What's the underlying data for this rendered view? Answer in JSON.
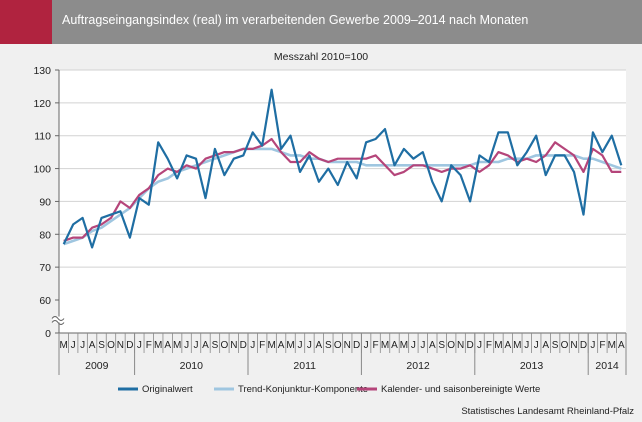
{
  "header": {
    "title": "Auftragseingangsindex (real) im verarbeitenden Gewerbe 2009–2014 nach Monaten"
  },
  "source": "Statistisches Landesamt Rheinland-Pfalz",
  "colors": {
    "header_bg": "#8c8c8c",
    "accent": "#b0233f",
    "background": "#f0f0f0"
  },
  "chart_data": {
    "type": "line",
    "subtitle": "Messzahl 2010=100",
    "yticks": [
      "0",
      "60",
      "70",
      "80",
      "90",
      "100",
      "110",
      "120",
      "130"
    ],
    "ylim": [
      60,
      130
    ],
    "axis_break": true,
    "grid": true,
    "legend_position": "bottom",
    "years": [
      {
        "label": "2009",
        "months": 8
      },
      {
        "label": "2010",
        "months": 12
      },
      {
        "label": "2011",
        "months": 12
      },
      {
        "label": "2012",
        "months": 12
      },
      {
        "label": "2013",
        "months": 12
      },
      {
        "label": "2014",
        "months": 4
      }
    ],
    "month_labels": [
      "M",
      "J",
      "J",
      "A",
      "S",
      "O",
      "N",
      "D",
      "J",
      "F",
      "M",
      "A",
      "M",
      "J",
      "J",
      "A",
      "S",
      "O",
      "N",
      "D",
      "J",
      "F",
      "M",
      "A",
      "M",
      "J",
      "J",
      "A",
      "S",
      "O",
      "N",
      "D",
      "J",
      "F",
      "M",
      "A",
      "M",
      "J",
      "J",
      "A",
      "S",
      "O",
      "N",
      "D",
      "J",
      "F",
      "M",
      "A",
      "M",
      "J",
      "J",
      "A",
      "S",
      "O",
      "N",
      "D",
      "J",
      "F",
      "M",
      "A"
    ],
    "series": [
      {
        "name": "Originalwert",
        "color": "#1f6ea3",
        "values": [
          77,
          83,
          85,
          76,
          85,
          86,
          87,
          79,
          91,
          89,
          108,
          103,
          97,
          104,
          103,
          91,
          106,
          98,
          103,
          104,
          111,
          107,
          124,
          106,
          110,
          99,
          104,
          96,
          100,
          95,
          102,
          97,
          108,
          109,
          112,
          101,
          106,
          103,
          105,
          96,
          90,
          101,
          98,
          90,
          104,
          102,
          111,
          111,
          101,
          105,
          110,
          98,
          104,
          104,
          99,
          86,
          111,
          105,
          110,
          101
        ]
      },
      {
        "name": "Trend-Konjunktur-Komponente",
        "color": "#9fc6e0",
        "values": [
          77,
          78,
          79,
          81,
          82,
          84,
          86,
          88,
          91,
          94,
          96,
          97,
          99,
          100,
          101,
          102,
          103,
          104,
          105,
          106,
          106,
          106,
          106,
          105,
          104,
          104,
          103,
          103,
          102,
          102,
          102,
          102,
          101,
          101,
          101,
          101,
          101,
          101,
          101,
          101,
          101,
          101,
          101,
          101,
          102,
          102,
          102,
          103,
          103,
          103,
          104,
          104,
          104,
          104,
          104,
          103,
          103,
          102,
          101,
          100
        ]
      },
      {
        "name": "Kalender- und saisonbereinigte Werte",
        "color": "#b5457a",
        "values": [
          78,
          79,
          79,
          82,
          83,
          85,
          90,
          88,
          92,
          94,
          98,
          100,
          99,
          101,
          100,
          103,
          104,
          105,
          105,
          106,
          106,
          107,
          109,
          105,
          102,
          102,
          105,
          103,
          102,
          103,
          103,
          103,
          103,
          104,
          101,
          98,
          99,
          101,
          101,
          100,
          99,
          100,
          100,
          101,
          99,
          101,
          105,
          104,
          102,
          103,
          102,
          104,
          108,
          106,
          104,
          99,
          106,
          104,
          99,
          99
        ]
      }
    ]
  }
}
